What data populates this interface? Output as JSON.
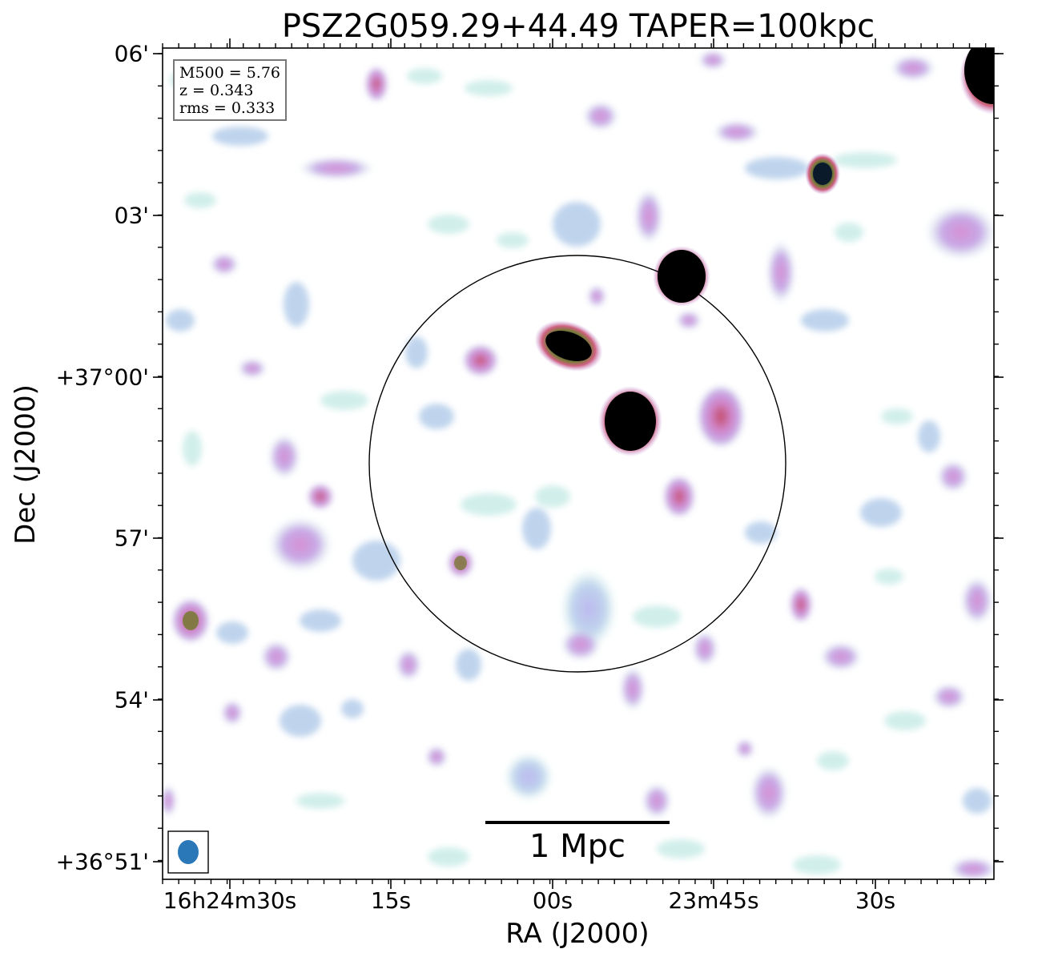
{
  "title": "PSZ2G059.29+44.49 TAPER=100kpc",
  "axes": {
    "xlabel": "RA (J2000)",
    "ylabel": "Dec (J2000)",
    "xticks": [
      "16h24m30s",
      "15s",
      "00s",
      "23m45s",
      "30s"
    ],
    "yticks": [
      "06'",
      "03'",
      "+37°00'",
      "57'",
      "54'",
      "+36°51'"
    ]
  },
  "info": {
    "line1": "M500 = 5.76",
    "line2": "z = 0.343",
    "line3": "rms = 0.333"
  },
  "scalebar": {
    "label": "1 Mpc"
  },
  "colors": {
    "faint": "#cfeee9",
    "low": "#b8cbeb",
    "mid": "#c4a6e6",
    "high": "#cf7fc8",
    "peak": "#c0405a",
    "core": "#000000",
    "beam": "#2a78b8"
  }
}
